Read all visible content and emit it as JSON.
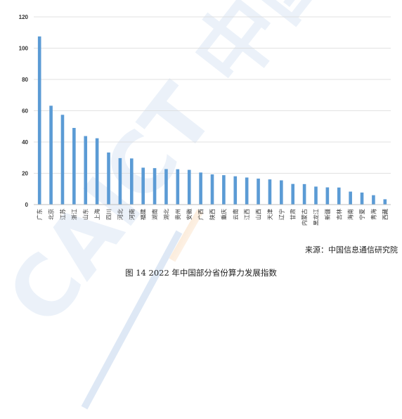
{
  "source_text": "来源：中国信息通信研究院",
  "caption": "图 14 2022 年中国部分省份算力发展指数",
  "watermark_text": "CAICT 中国信通院",
  "colors": {
    "bar": "#5b9bd5",
    "grid": "#d9d9d9",
    "axis": "#bfbfbf",
    "text": "#333333"
  },
  "chart_data": {
    "type": "bar",
    "title": "",
    "xlabel": "",
    "ylabel": "",
    "ylim": [
      0,
      120
    ],
    "yticks": [
      0,
      20,
      40,
      60,
      80,
      100,
      120
    ],
    "grid": true,
    "categories": [
      "广东",
      "北京",
      "江苏",
      "浙江",
      "山东",
      "上海",
      "四川",
      "河北",
      "河南",
      "福建",
      "湖南",
      "湖北",
      "贵州",
      "安徽",
      "广西",
      "陕西",
      "重庆",
      "云南",
      "江西",
      "山西",
      "天津",
      "辽宁",
      "甘肃",
      "内蒙古",
      "黑龙江",
      "新疆",
      "吉林",
      "海南",
      "宁夏",
      "青海",
      "西藏"
    ],
    "values": [
      107.5,
      63.2,
      57.4,
      49.0,
      43.8,
      42.4,
      33.3,
      29.7,
      29.5,
      23.6,
      23.3,
      22.7,
      22.6,
      22.2,
      20.5,
      19.3,
      18.8,
      18.1,
      17.3,
      16.6,
      16.1,
      15.5,
      13.2,
      13.1,
      11.5,
      11.0,
      10.9,
      8.3,
      7.7,
      6.0,
      3.4
    ]
  }
}
